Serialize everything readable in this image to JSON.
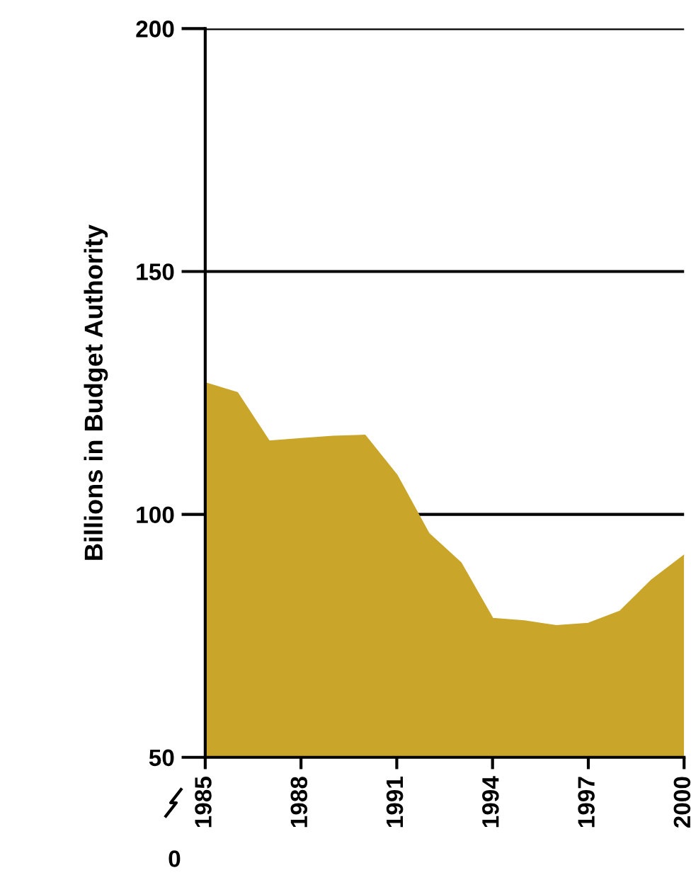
{
  "chart_data": {
    "type": "area",
    "ylabel": "Billions in Budget Authority",
    "x": [
      1985,
      1986,
      1987,
      1988,
      1989,
      1990,
      1991,
      1992,
      1993,
      1994,
      1995,
      1996,
      1997,
      1998,
      1999,
      2000
    ],
    "series": [
      {
        "color": "#c9a52a",
        "values": [
          127,
          125,
          115,
          115.5,
          116,
          116.2,
          108,
          96,
          90,
          78.5,
          78,
          77,
          77.5,
          80,
          86.5,
          91.5
        ]
      }
    ],
    "xlim": [
      1985,
      2000
    ],
    "xticks": [
      1985,
      1988,
      1991,
      1994,
      1997,
      2000
    ],
    "ylim": [
      50,
      200
    ],
    "yticks": [
      50,
      100,
      150,
      200
    ],
    "grid": "y",
    "annotations": [
      "0"
    ]
  }
}
